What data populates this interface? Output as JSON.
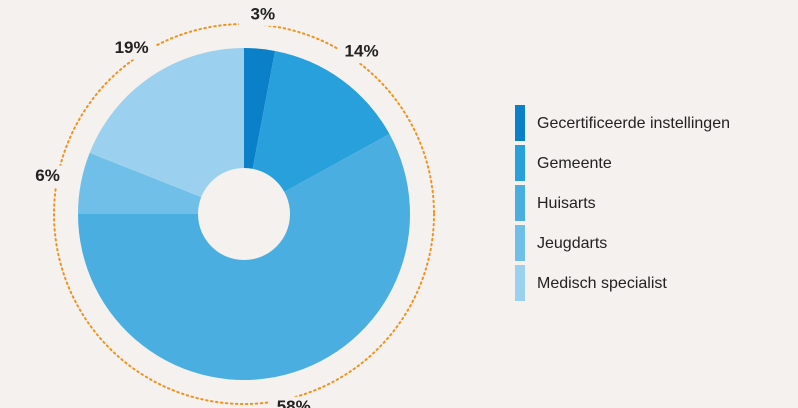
{
  "chart_data": {
    "type": "donut",
    "categories": [
      "Gecertificeerde instellingen",
      "Gemeente",
      "Huisarts",
      "Jeugdarts",
      "Medisch specialist"
    ],
    "values": [
      3,
      14,
      58,
      6,
      19
    ],
    "value_labels": [
      "3%",
      "14%",
      "58%",
      "6%",
      "19%"
    ],
    "colors": [
      "#0a80c8",
      "#27a0db",
      "#4baee0",
      "#6fbfe8",
      "#9bd1ee"
    ],
    "legend": "right"
  }
}
